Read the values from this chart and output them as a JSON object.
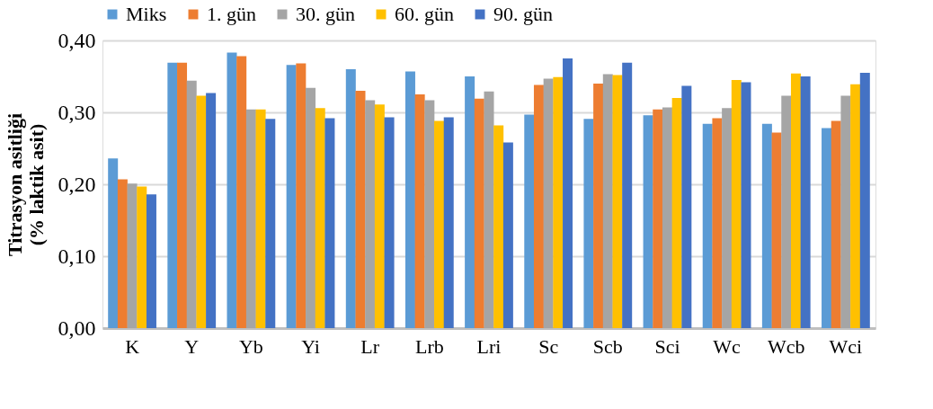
{
  "chart_data": {
    "type": "bar",
    "ylabel": "Titrasyon asitliği\n(% laktik asit)",
    "categories": [
      "K",
      "Y",
      "Yb",
      "Yi",
      "Lr",
      "Lrb",
      "Lri",
      "Sc",
      "Scb",
      "Sci",
      "Wc",
      "Wcb",
      "Wci"
    ],
    "series": [
      {
        "name": "Miks",
        "color": "#5b9bd5",
        "values": [
          0.236,
          0.369,
          0.383,
          0.366,
          0.36,
          0.357,
          0.35,
          0.297,
          0.291,
          0.296,
          0.284,
          0.284,
          0.278
        ]
      },
      {
        "name": "1. gün",
        "color": "#ed7d31",
        "values": [
          0.207,
          0.369,
          0.378,
          0.368,
          0.33,
          0.325,
          0.319,
          0.338,
          0.34,
          0.304,
          0.292,
          0.272,
          0.288
        ]
      },
      {
        "name": "30. gün",
        "color": "#a5a5a5",
        "values": [
          0.201,
          0.344,
          0.304,
          0.334,
          0.317,
          0.317,
          0.329,
          0.347,
          0.353,
          0.307,
          0.306,
          0.323,
          0.323
        ]
      },
      {
        "name": "60. gün",
        "color": "#ffc000",
        "values": [
          0.197,
          0.323,
          0.304,
          0.306,
          0.311,
          0.288,
          0.282,
          0.349,
          0.352,
          0.32,
          0.345,
          0.354,
          0.339
        ]
      },
      {
        "name": "90. gün",
        "color": "#4472c4",
        "values": [
          0.186,
          0.327,
          0.291,
          0.292,
          0.293,
          0.293,
          0.258,
          0.375,
          0.369,
          0.337,
          0.342,
          0.35,
          0.355
        ]
      }
    ],
    "ylim": [
      0,
      0.4
    ],
    "yticks": [
      {
        "value": 0,
        "label": "0,00"
      },
      {
        "value": 0.1,
        "label": "0,10"
      },
      {
        "value": 0.2,
        "label": "0,20"
      },
      {
        "value": 0.3,
        "label": "0,30"
      },
      {
        "value": 0.4,
        "label": "0,40"
      }
    ],
    "grid": "y",
    "legend": "top"
  }
}
